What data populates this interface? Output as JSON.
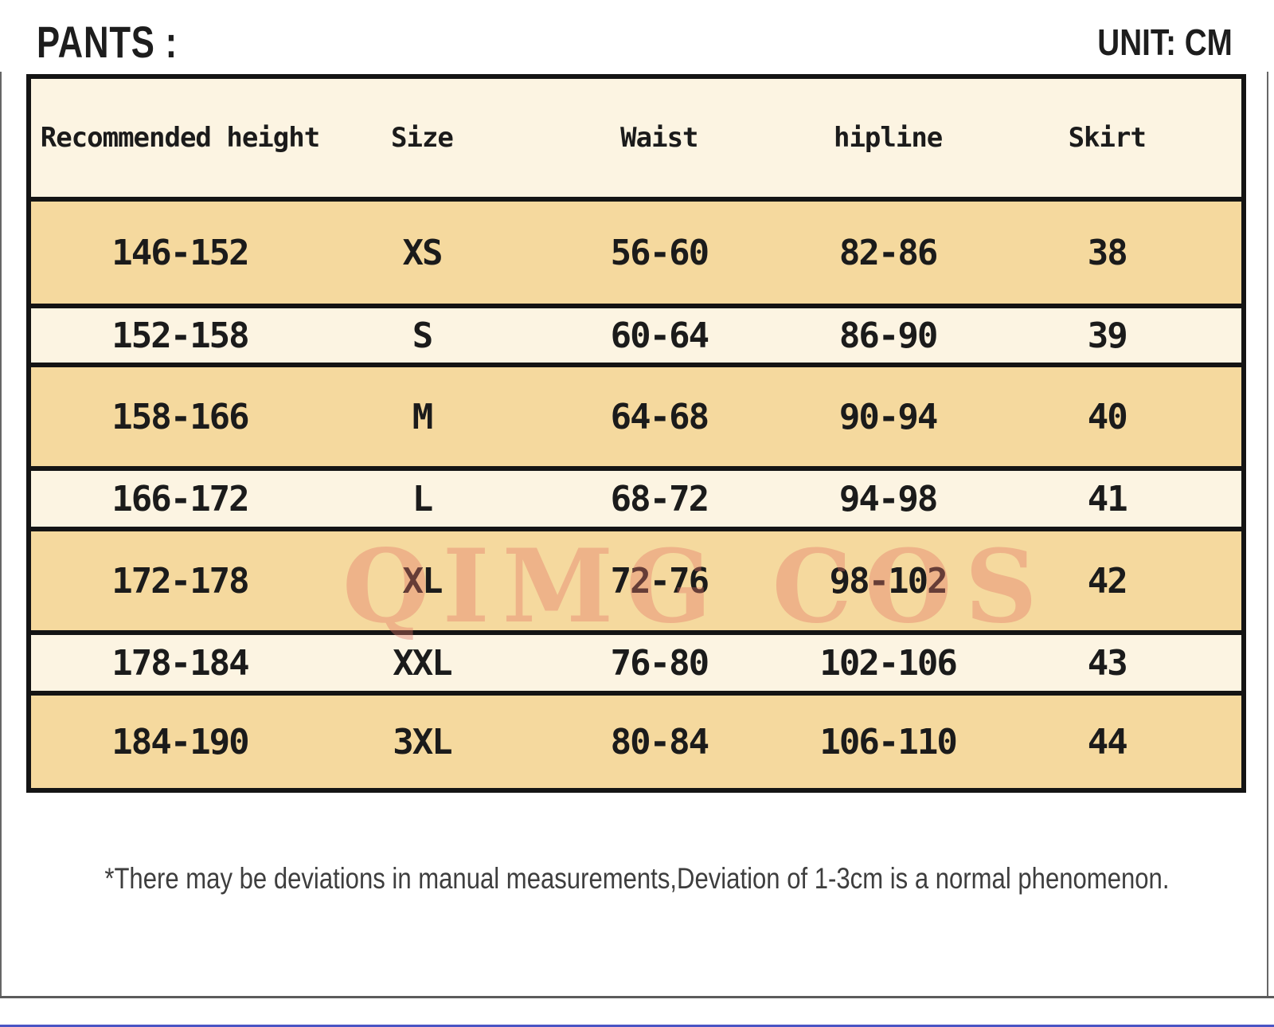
{
  "header": {
    "title": "PANTS :",
    "unit": "UNIT: CM"
  },
  "table": {
    "columns": [
      {
        "label": "Recommended height"
      },
      {
        "label": "Size"
      },
      {
        "label": "Waist"
      },
      {
        "label": "hipline"
      },
      {
        "label": "Skirt"
      }
    ],
    "rows": [
      {
        "height": "146-152",
        "size": "XS",
        "waist": "56-60",
        "hipline": "82-86",
        "skirt": "38"
      },
      {
        "height": "152-158",
        "size": "S",
        "waist": "60-64",
        "hipline": "86-90",
        "skirt": "39"
      },
      {
        "height": "158-166",
        "size": "M",
        "waist": "64-68",
        "hipline": "90-94",
        "skirt": "40"
      },
      {
        "height": "166-172",
        "size": "L",
        "waist": "68-72",
        "hipline": "94-98",
        "skirt": "41"
      },
      {
        "height": "172-178",
        "size": "XL",
        "waist": "72-76",
        "hipline": "98-102",
        "skirt": "42"
      },
      {
        "height": "178-184",
        "size": "XXL",
        "waist": "76-80",
        "hipline": "102-106",
        "skirt": "43"
      },
      {
        "height": "184-190",
        "size": "3XL",
        "waist": "80-84",
        "hipline": "106-110",
        "skirt": "44"
      }
    ]
  },
  "watermark": "QIMG COS",
  "footnote": "*There may be deviations in manual measurements,Deviation of 1-3cm is a normal phenomenon.",
  "colors": {
    "row_cream": "#fcf4e2",
    "row_tan": "#f5d99e",
    "table_border": "#141414",
    "watermark_pink": "#e37666",
    "footnote_text": "#3e3e3e",
    "bottom_line_blue": "#4a55c4"
  }
}
